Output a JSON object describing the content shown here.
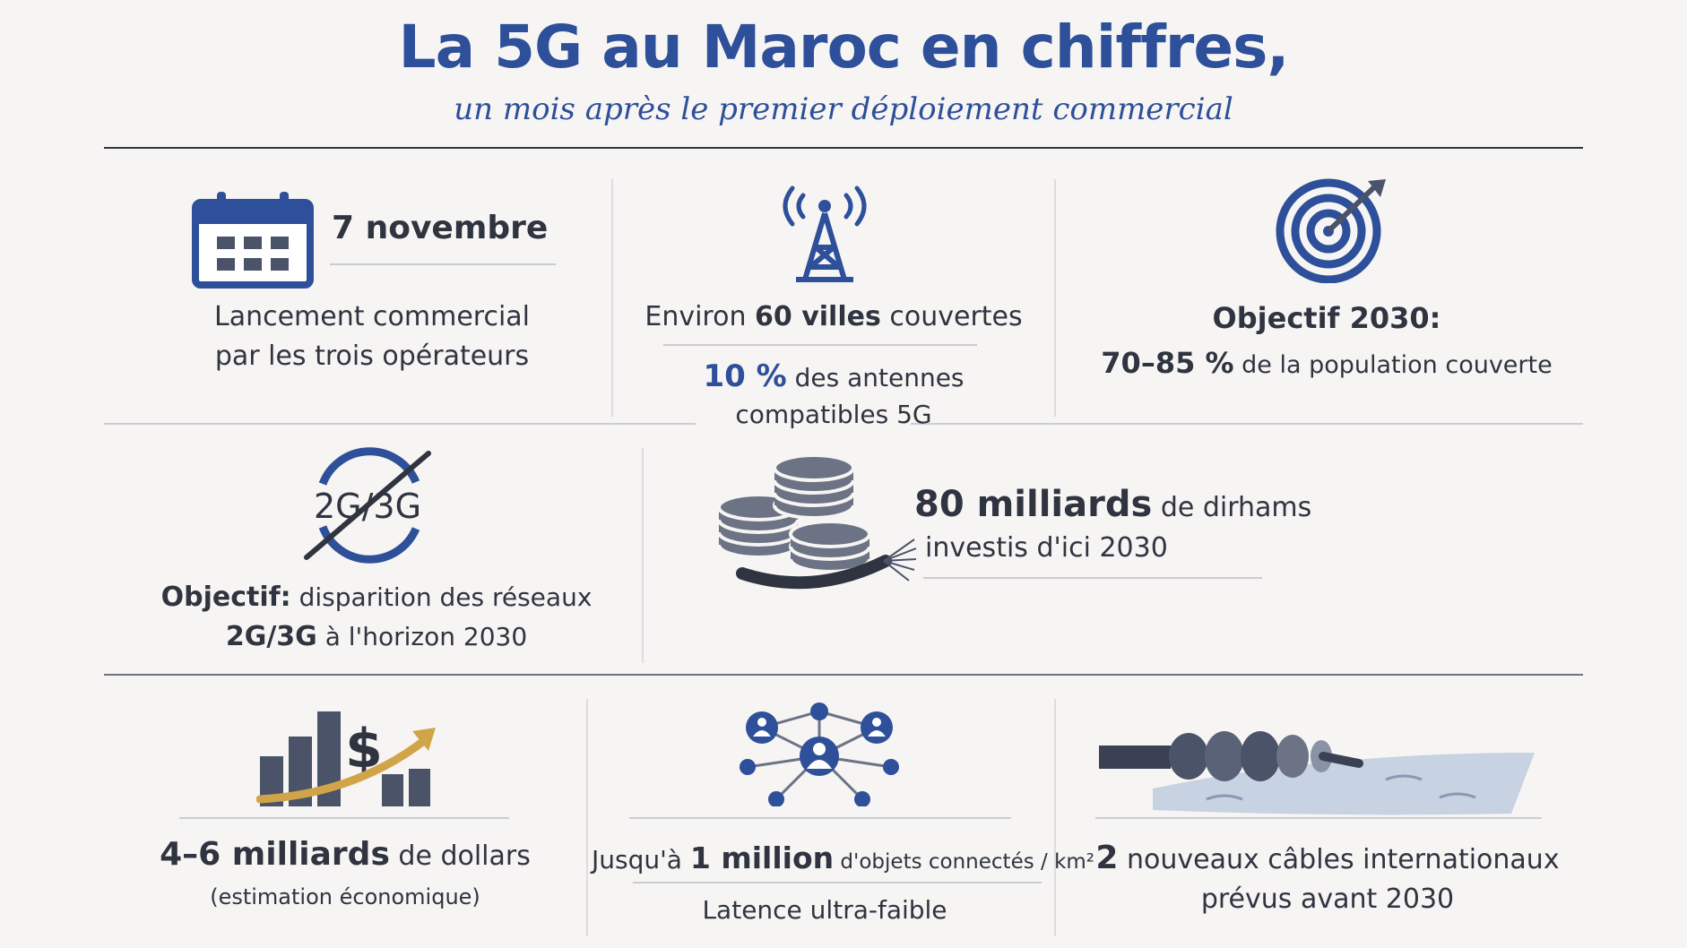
{
  "header": {
    "title": "La 5G au Maroc en chiffres,",
    "subtitle": "un mois après le premier déploiement commercial"
  },
  "colors": {
    "accent": "#2e4f9a",
    "ink": "#2f3440",
    "gold": "#d2a44a",
    "background": "#f7f5f3"
  },
  "cards": {
    "launch": {
      "icon": "calendar-icon",
      "date": "7 novembre",
      "line1": "Lancement commercial",
      "line2": "par les trois opérateurs"
    },
    "coverage": {
      "icon": "antenna-tower-icon",
      "prefix": "Environ ",
      "bold": "60 villes",
      "suffix": " couvertes",
      "pct": "10 %",
      "pct_text": " des antennes",
      "pct_line2": "compatibles 5G"
    },
    "goal": {
      "icon": "target-icon",
      "heading": "Objectif 2030:",
      "bold": "70–85 %",
      "rest": " de la population couverte"
    },
    "legacy": {
      "icon": "2g-3g-crossed-icon",
      "icon_text": "2G/3G",
      "lead": "Objectif:",
      "lead_rest": " disparition des réseaux",
      "bold2": "2G/3G",
      "rest2": " à l'horizon 2030"
    },
    "investment": {
      "icon": "coins-cable-icon",
      "bold": "80 milliards",
      "rest": " de dirhams",
      "line2": "investis d'ici 2030"
    },
    "economy": {
      "icon": "growth-dollar-icon",
      "dollar": "$",
      "bold": "4–6 milliards",
      "rest": " de dollars",
      "line2": "(estimation économique)"
    },
    "iot": {
      "icon": "network-users-icon",
      "prefix": "Jusqu'à ",
      "bold": "1 million",
      "rest": " d'objets connectés / km²",
      "line2": "Latence ultra-faible"
    },
    "cables": {
      "icon": "submarine-cable-icon",
      "bold": "2",
      "rest": " nouveaux câbles internationaux",
      "line2": "prévus avant 2030"
    }
  }
}
